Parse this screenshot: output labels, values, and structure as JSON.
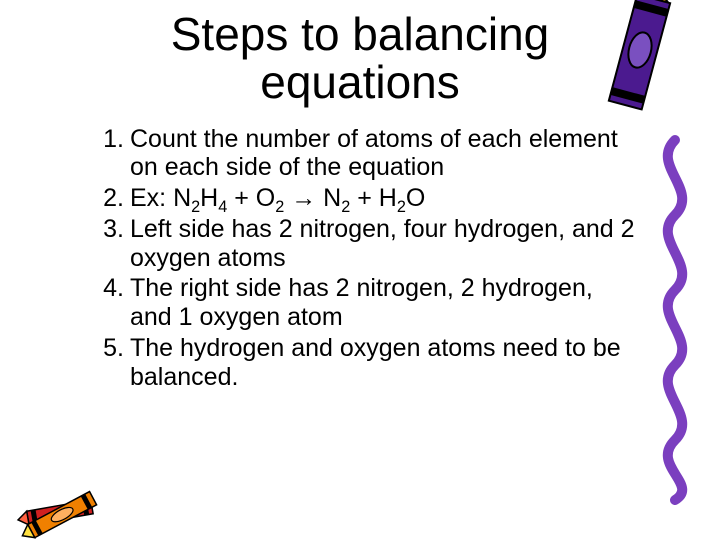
{
  "title_line1": "Steps to balancing",
  "title_line2": "equations",
  "items": [
    {
      "num": "1.",
      "html": "Count the number of atoms of each element on each side of the equation"
    },
    {
      "num": "2.",
      "html": "Ex: N<sub>2</sub>H<sub>4</sub> + O<sub>2</sub> <span class='arrow'>→</span> N<sub>2</sub> + H<sub>2</sub>O"
    },
    {
      "num": "3.",
      "html": "Left side has 2 nitrogen, four hydrogen, and 2 oxygen atoms"
    },
    {
      "num": "4.",
      "html": "The right side has 2 nitrogen, 2 hydrogen, and 1 oxygen atom"
    },
    {
      "num": "5.",
      "html": "The hydrogen and oxygen atoms need to be balanced."
    }
  ],
  "colors": {
    "squiggle": "#7b3fbf",
    "crayon_purple_body": "#4b1a8f",
    "crayon_purple_tip": "#dca000",
    "crayon_orange_body": "#f08000",
    "crayon_orange_tip": "#ffe040",
    "crayon_red_body": "#d02020",
    "crayon_red_tip": "#ff6040",
    "crayon_band": "#000000"
  }
}
